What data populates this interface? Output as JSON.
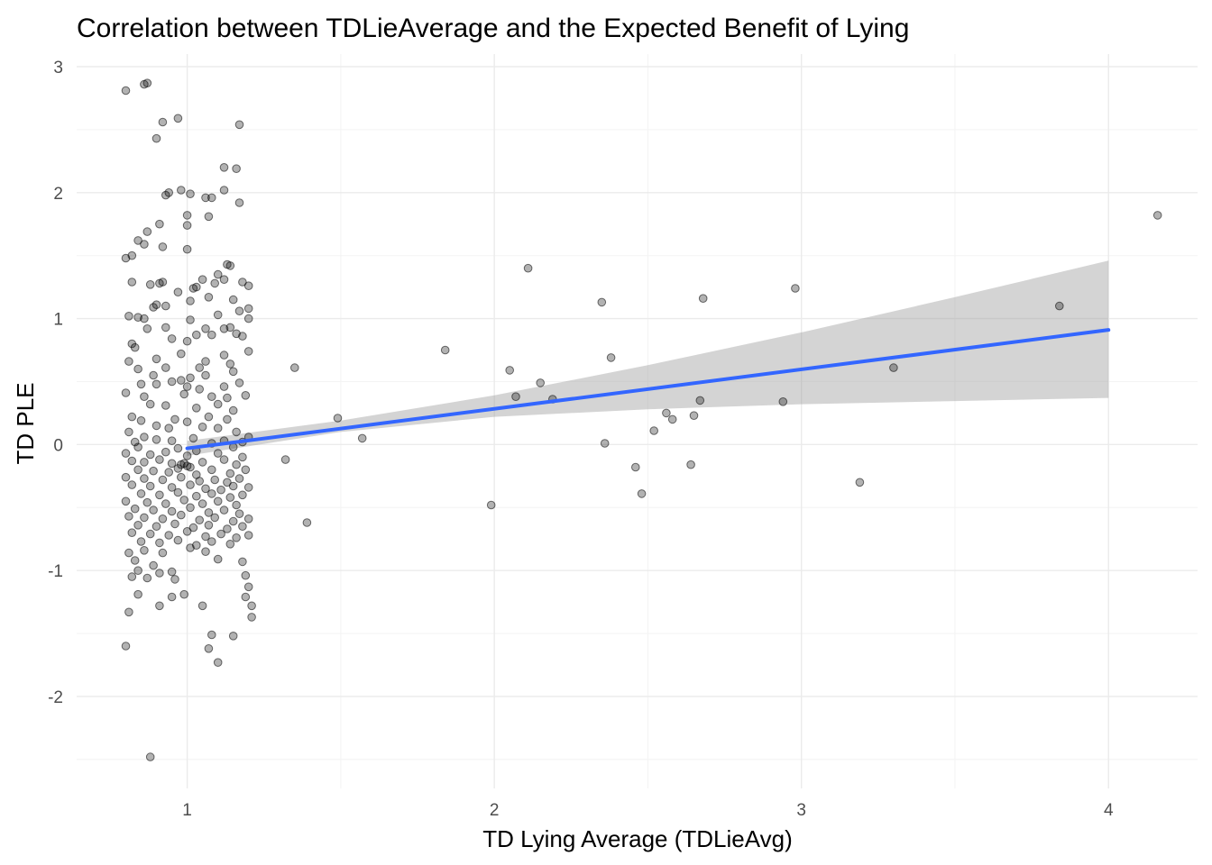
{
  "chart_data": {
    "type": "scatter",
    "title": "Correlation between TDLieAverage and the Expected Benefit of Lying",
    "xlabel": "TD Lying Average (TDLieAvg)",
    "ylabel": "TD PLE",
    "xlim": [
      0.64,
      4.29
    ],
    "ylim": [
      -2.73,
      3.1
    ],
    "x_ticks": [
      1,
      2,
      3,
      4
    ],
    "x_tick_labels": [
      "1",
      "2",
      "3",
      "4"
    ],
    "y_ticks": [
      -2,
      -1,
      0,
      1,
      2,
      3
    ],
    "y_tick_labels": [
      "-2",
      "-1",
      "0",
      "1",
      "2",
      "3"
    ],
    "grid": true,
    "legend": "none",
    "colors": {
      "points": "#000000",
      "fit_line": "#3366FF",
      "confidence_band": "#999999"
    },
    "fit": {
      "method": "linear regression with confidence band",
      "x_start": 1.0,
      "y_start": -0.03,
      "x_end": 4.0,
      "y_end": 0.91,
      "band_lower": [
        [
          1.0,
          -0.09
        ],
        [
          1.5,
          0.1
        ],
        [
          2.0,
          0.22
        ],
        [
          2.5,
          0.28
        ],
        [
          3.0,
          0.32
        ],
        [
          3.5,
          0.345
        ],
        [
          4.0,
          0.37
        ]
      ],
      "band_upper": [
        [
          1.0,
          0.03
        ],
        [
          1.5,
          0.19
        ],
        [
          2.0,
          0.39
        ],
        [
          2.5,
          0.63
        ],
        [
          3.0,
          0.89
        ],
        [
          3.5,
          1.17
        ],
        [
          4.0,
          1.46
        ]
      ]
    },
    "points": [
      [
        0.8,
        2.81
      ],
      [
        0.86,
        2.86
      ],
      [
        0.87,
        2.87
      ],
      [
        0.97,
        2.59
      ],
      [
        0.92,
        2.56
      ],
      [
        1.17,
        2.54
      ],
      [
        0.9,
        2.43
      ],
      [
        1.12,
        2.2
      ],
      [
        1.16,
        2.19
      ],
      [
        0.94,
        2.0
      ],
      [
        0.93,
        1.98
      ],
      [
        0.98,
        2.02
      ],
      [
        1.01,
        1.99
      ],
      [
        1.06,
        1.96
      ],
      [
        1.08,
        1.96
      ],
      [
        1.12,
        2.02
      ],
      [
        1.17,
        1.92
      ],
      [
        1.0,
        1.82
      ],
      [
        1.07,
        1.81
      ],
      [
        0.91,
        1.75
      ],
      [
        0.87,
        1.69
      ],
      [
        1.0,
        1.74
      ],
      [
        0.84,
        1.62
      ],
      [
        0.92,
        1.57
      ],
      [
        1.0,
        1.55
      ],
      [
        0.8,
        1.48
      ],
      [
        0.82,
        1.5
      ],
      [
        0.86,
        1.59
      ],
      [
        1.13,
        1.43
      ],
      [
        1.14,
        1.42
      ],
      [
        1.1,
        1.35
      ],
      [
        1.12,
        1.31
      ],
      [
        1.05,
        1.31
      ],
      [
        1.09,
        1.28
      ],
      [
        1.18,
        1.29
      ],
      [
        1.2,
        1.26
      ],
      [
        0.82,
        1.29
      ],
      [
        0.88,
        1.27
      ],
      [
        0.92,
        1.29
      ],
      [
        0.91,
        1.28
      ],
      [
        1.02,
        1.24
      ],
      [
        1.03,
        1.25
      ],
      [
        0.97,
        1.21
      ],
      [
        1.07,
        1.17
      ],
      [
        1.15,
        1.15
      ],
      [
        1.01,
        1.14
      ],
      [
        0.9,
        1.11
      ],
      [
        0.89,
        1.09
      ],
      [
        0.93,
        1.1
      ],
      [
        0.81,
        1.02
      ],
      [
        0.84,
        1.01
      ],
      [
        0.86,
        1.0
      ],
      [
        1.17,
        1.06
      ],
      [
        1.2,
        1.08
      ],
      [
        1.2,
        1.0
      ],
      [
        1.1,
        1.03
      ],
      [
        1.01,
        0.99
      ],
      [
        0.87,
        0.92
      ],
      [
        0.93,
        0.93
      ],
      [
        1.06,
        0.92
      ],
      [
        1.08,
        0.87
      ],
      [
        1.03,
        0.87
      ],
      [
        1.14,
        0.93
      ],
      [
        1.12,
        0.92
      ],
      [
        0.95,
        0.84
      ],
      [
        0.82,
        0.8
      ],
      [
        0.83,
        0.77
      ],
      [
        1.0,
        0.82
      ],
      [
        1.16,
        0.88
      ],
      [
        1.18,
        0.86
      ],
      [
        1.12,
        0.71
      ],
      [
        1.2,
        0.74
      ],
      [
        0.81,
        0.66
      ],
      [
        0.9,
        0.68
      ],
      [
        0.98,
        0.72
      ],
      [
        1.06,
        0.66
      ],
      [
        1.14,
        0.64
      ],
      [
        1.04,
        0.61
      ],
      [
        0.84,
        0.6
      ],
      [
        0.93,
        0.61
      ],
      [
        1.15,
        0.58
      ],
      [
        0.89,
        0.55
      ],
      [
        0.98,
        0.51
      ],
      [
        1.01,
        0.53
      ],
      [
        1.06,
        0.55
      ],
      [
        0.85,
        0.48
      ],
      [
        0.9,
        0.48
      ],
      [
        0.95,
        0.5
      ],
      [
        1.0,
        0.46
      ],
      [
        1.12,
        0.46
      ],
      [
        1.17,
        0.49
      ],
      [
        0.8,
        0.41
      ],
      [
        0.86,
        0.38
      ],
      [
        0.99,
        0.4
      ],
      [
        1.04,
        0.44
      ],
      [
        1.08,
        0.38
      ],
      [
        1.13,
        0.37
      ],
      [
        1.19,
        0.39
      ],
      [
        0.88,
        0.32
      ],
      [
        0.93,
        0.31
      ],
      [
        1.03,
        0.29
      ],
      [
        1.1,
        0.32
      ],
      [
        1.15,
        0.27
      ],
      [
        0.82,
        0.22
      ],
      [
        0.85,
        0.19
      ],
      [
        0.96,
        0.2
      ],
      [
        1.0,
        0.18
      ],
      [
        1.07,
        0.22
      ],
      [
        1.13,
        0.2
      ],
      [
        0.9,
        0.15
      ],
      [
        0.94,
        0.13
      ],
      [
        1.05,
        0.14
      ],
      [
        1.1,
        0.13
      ],
      [
        1.16,
        0.1
      ],
      [
        1.2,
        0.06
      ],
      [
        1.18,
        0.02
      ],
      [
        0.81,
        0.1
      ],
      [
        0.86,
        0.06
      ],
      [
        0.83,
        0.02
      ],
      [
        0.9,
        0.04
      ],
      [
        0.95,
        0.03
      ],
      [
        1.02,
        0.05
      ],
      [
        1.08,
        0.01
      ],
      [
        1.12,
        0.03
      ],
      [
        0.84,
        -0.02
      ],
      [
        0.97,
        -0.03
      ],
      [
        1.03,
        -0.05
      ],
      [
        1.15,
        -0.02
      ],
      [
        0.8,
        -0.07
      ],
      [
        0.88,
        -0.08
      ],
      [
        0.93,
        -0.06
      ],
      [
        1.0,
        -0.09
      ],
      [
        1.1,
        -0.07
      ],
      [
        1.18,
        -0.1
      ],
      [
        0.82,
        -0.13
      ],
      [
        0.86,
        -0.14
      ],
      [
        0.91,
        -0.12
      ],
      [
        0.95,
        -0.15
      ],
      [
        0.98,
        -0.16
      ],
      [
        1.0,
        -0.17
      ],
      [
        0.99,
        -0.15
      ],
      [
        1.01,
        -0.18
      ],
      [
        1.05,
        -0.14
      ],
      [
        1.12,
        -0.12
      ],
      [
        1.16,
        -0.16
      ],
      [
        0.84,
        -0.2
      ],
      [
        0.89,
        -0.21
      ],
      [
        0.94,
        -0.22
      ],
      [
        0.97,
        -0.19
      ],
      [
        1.03,
        -0.24
      ],
      [
        1.08,
        -0.2
      ],
      [
        1.14,
        -0.23
      ],
      [
        1.19,
        -0.2
      ],
      [
        0.8,
        -0.26
      ],
      [
        0.86,
        -0.27
      ],
      [
        0.92,
        -0.28
      ],
      [
        0.98,
        -0.26
      ],
      [
        1.04,
        -0.29
      ],
      [
        1.09,
        -0.28
      ],
      [
        1.13,
        -0.3
      ],
      [
        1.17,
        -0.27
      ],
      [
        0.82,
        -0.32
      ],
      [
        0.88,
        -0.33
      ],
      [
        0.95,
        -0.34
      ],
      [
        1.01,
        -0.32
      ],
      [
        1.06,
        -0.35
      ],
      [
        1.11,
        -0.36
      ],
      [
        1.15,
        -0.33
      ],
      [
        1.2,
        -0.34
      ],
      [
        0.85,
        -0.39
      ],
      [
        0.91,
        -0.4
      ],
      [
        0.97,
        -0.38
      ],
      [
        1.03,
        -0.41
      ],
      [
        1.08,
        -0.39
      ],
      [
        1.14,
        -0.42
      ],
      [
        1.18,
        -0.4
      ],
      [
        0.8,
        -0.45
      ],
      [
        0.87,
        -0.46
      ],
      [
        0.93,
        -0.47
      ],
      [
        0.99,
        -0.44
      ],
      [
        1.05,
        -0.47
      ],
      [
        1.1,
        -0.45
      ],
      [
        1.16,
        -0.48
      ],
      [
        0.83,
        -0.51
      ],
      [
        0.89,
        -0.52
      ],
      [
        0.95,
        -0.53
      ],
      [
        1.01,
        -0.5
      ],
      [
        1.07,
        -0.54
      ],
      [
        1.12,
        -0.52
      ],
      [
        1.17,
        -0.55
      ],
      [
        0.81,
        -0.57
      ],
      [
        0.86,
        -0.58
      ],
      [
        0.92,
        -0.59
      ],
      [
        0.98,
        -0.56
      ],
      [
        1.04,
        -0.6
      ],
      [
        1.09,
        -0.58
      ],
      [
        1.15,
        -0.61
      ],
      [
        1.2,
        -0.59
      ],
      [
        0.84,
        -0.64
      ],
      [
        0.9,
        -0.65
      ],
      [
        0.96,
        -0.63
      ],
      [
        1.02,
        -0.66
      ],
      [
        1.07,
        -0.64
      ],
      [
        1.13,
        -0.67
      ],
      [
        1.18,
        -0.65
      ],
      [
        0.82,
        -0.7
      ],
      [
        0.88,
        -0.71
      ],
      [
        0.94,
        -0.72
      ],
      [
        1.0,
        -0.69
      ],
      [
        1.06,
        -0.73
      ],
      [
        1.11,
        -0.71
      ],
      [
        1.16,
        -0.74
      ],
      [
        1.2,
        -0.72
      ],
      [
        0.85,
        -0.77
      ],
      [
        0.91,
        -0.78
      ],
      [
        0.97,
        -0.76
      ],
      [
        1.03,
        -0.8
      ],
      [
        1.08,
        -0.77
      ],
      [
        1.14,
        -0.79
      ],
      [
        0.81,
        -0.86
      ],
      [
        0.86,
        -0.84
      ],
      [
        0.92,
        -0.86
      ],
      [
        1.01,
        -0.82
      ],
      [
        1.06,
        -0.85
      ],
      [
        0.83,
        -0.92
      ],
      [
        0.89,
        -0.96
      ],
      [
        1.1,
        -0.91
      ],
      [
        1.18,
        -0.93
      ],
      [
        0.84,
        -1.0
      ],
      [
        0.91,
        -1.02
      ],
      [
        0.95,
        -1.01
      ],
      [
        0.82,
        -1.05
      ],
      [
        0.87,
        -1.06
      ],
      [
        0.96,
        -1.07
      ],
      [
        1.19,
        -1.04
      ],
      [
        1.2,
        -1.13
      ],
      [
        1.19,
        -1.21
      ],
      [
        0.84,
        -1.19
      ],
      [
        0.99,
        -1.19
      ],
      [
        0.95,
        -1.21
      ],
      [
        0.91,
        -1.28
      ],
      [
        1.05,
        -1.28
      ],
      [
        1.21,
        -1.28
      ],
      [
        0.81,
        -1.33
      ],
      [
        1.21,
        -1.37
      ],
      [
        1.08,
        -1.51
      ],
      [
        1.15,
        -1.52
      ],
      [
        0.8,
        -1.6
      ],
      [
        1.07,
        -1.62
      ],
      [
        1.1,
        -1.73
      ],
      [
        0.88,
        -2.48
      ],
      [
        1.32,
        -0.12
      ],
      [
        1.35,
        0.61
      ],
      [
        1.39,
        -0.62
      ],
      [
        1.49,
        0.21
      ],
      [
        1.57,
        0.05
      ],
      [
        1.84,
        0.75
      ],
      [
        1.99,
        -0.48
      ],
      [
        2.05,
        0.59
      ],
      [
        2.07,
        0.38
      ],
      [
        2.11,
        1.4
      ],
      [
        2.15,
        0.49
      ],
      [
        2.19,
        0.36
      ],
      [
        2.35,
        1.13
      ],
      [
        2.36,
        0.01
      ],
      [
        2.38,
        0.69
      ],
      [
        2.46,
        -0.18
      ],
      [
        2.48,
        -0.39
      ],
      [
        2.52,
        0.11
      ],
      [
        2.56,
        0.25
      ],
      [
        2.58,
        0.2
      ],
      [
        2.64,
        -0.16
      ],
      [
        2.65,
        0.23
      ],
      [
        2.67,
        0.35
      ],
      [
        2.68,
        1.16
      ],
      [
        2.94,
        0.34
      ],
      [
        2.98,
        1.24
      ],
      [
        3.19,
        -0.3
      ],
      [
        3.3,
        0.61
      ],
      [
        3.84,
        1.1
      ],
      [
        4.16,
        1.82
      ]
    ]
  }
}
